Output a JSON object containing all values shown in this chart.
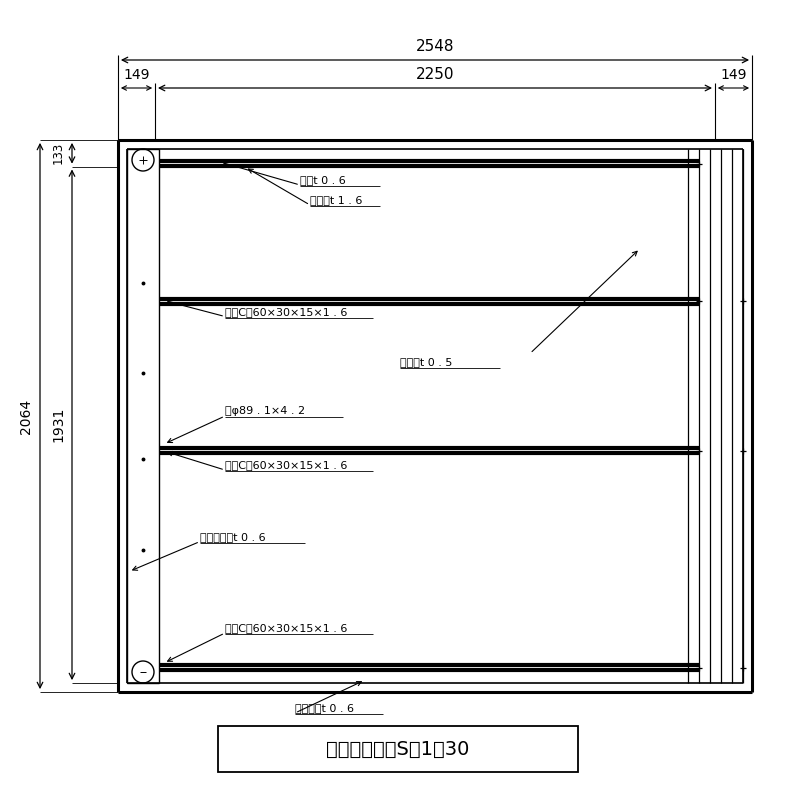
{
  "bg_color": "#ffffff",
  "line_color": "#000000",
  "title_text": "平　面　図　S＝1：30",
  "dim_2548": "2548",
  "dim_2250": "2250",
  "dim_149_left": "149",
  "dim_149_right": "149",
  "dim_133": "133",
  "dim_2064": "2064",
  "dim_1931": "1931",
  "label_nokidoi": "軍樋t 0 . 6",
  "label_atomoya": "後母屋t 1 . 6",
  "label_moya1": "母屋C－60×30×15×1 . 6",
  "label_yanenban": "屋根板t 0 . 5",
  "label_hari": "梁φ89 . 1×4 . 2",
  "label_moya2": "母屋C－60×30×15×1 . 6",
  "label_sokumen": "側面化粧板t 0 . 6",
  "label_moya3": "母屋C－60×30×15×1 . 6",
  "label_maekesho": "前化粧板t 0 . 6",
  "fig_width": 8.0,
  "fig_height": 8.0,
  "dpi": 100
}
